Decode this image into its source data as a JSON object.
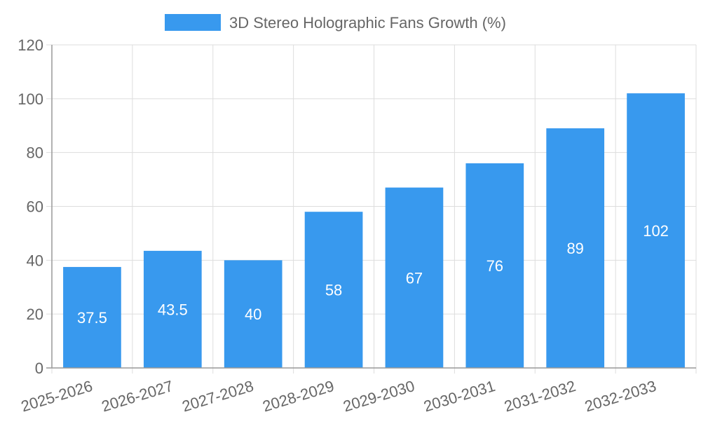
{
  "chart_data": {
    "type": "bar",
    "title": "",
    "xlabel": "",
    "ylabel": "",
    "categories": [
      "2025-2026",
      "2026-2027",
      "2027-2028",
      "2028-2029",
      "2029-2030",
      "2030-2031",
      "2031-2032",
      "2032-2033"
    ],
    "series": [
      {
        "name": "3D Stereo Holographic Fans Growth (%)",
        "values": [
          37.5,
          43.5,
          40,
          58,
          67,
          76,
          89,
          102
        ],
        "color": "#3899ee"
      }
    ],
    "data_labels": [
      "37.5",
      "43.5",
      "40",
      "58",
      "67",
      "76",
      "89",
      "102"
    ],
    "ylim": [
      0,
      120
    ],
    "yticks": [
      0,
      20,
      40,
      60,
      80,
      100,
      120
    ],
    "grid": true,
    "legend_position": "top-center"
  }
}
